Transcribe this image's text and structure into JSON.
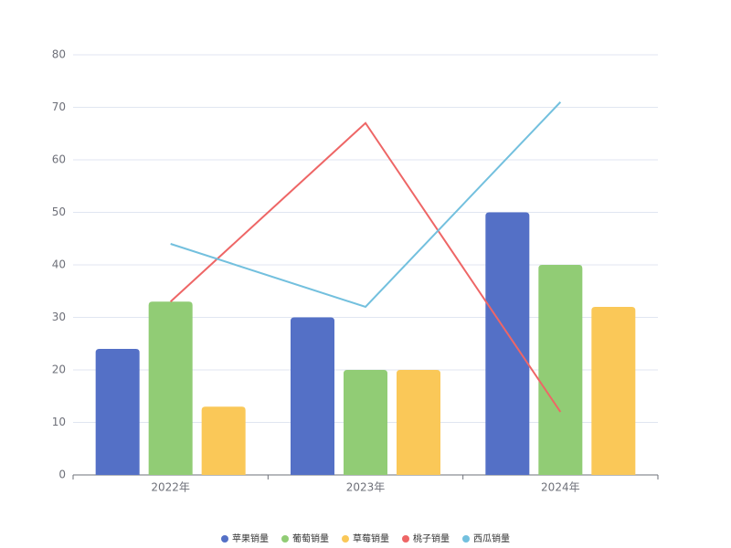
{
  "chart_data": {
    "type": "bar",
    "categories": [
      "2022年",
      "2023年",
      "2024年"
    ],
    "series": [
      {
        "name": "苹果销量",
        "type": "bar",
        "color": "#5470c6",
        "values": [
          24,
          30,
          50
        ]
      },
      {
        "name": "葡萄销量",
        "type": "bar",
        "color": "#91cc75",
        "values": [
          33,
          20,
          40
        ]
      },
      {
        "name": "草莓销量",
        "type": "bar",
        "color": "#fac858",
        "values": [
          13,
          20,
          32
        ]
      },
      {
        "name": "桃子销量",
        "type": "line",
        "color": "#ee6666",
        "values": [
          33,
          67,
          12
        ]
      },
      {
        "name": "西瓜销量",
        "type": "line",
        "color": "#73c0de",
        "values": [
          44,
          32,
          71
        ]
      }
    ],
    "ylim": [
      0,
      80
    ],
    "yticks": [
      0,
      10,
      20,
      30,
      40,
      50,
      60,
      70,
      80
    ],
    "grid": true,
    "legend": "bottom"
  }
}
